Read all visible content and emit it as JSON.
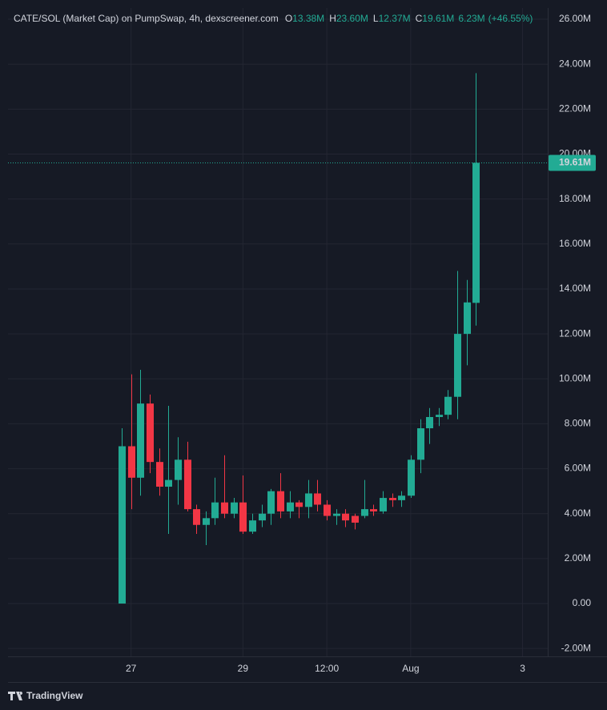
{
  "chart_data": {
    "type": "candlestick",
    "title": "CATE/SOL (Market Cap) on PumpSwap, 4h, dexscreener.com",
    "legend": [
      {
        "key": "O",
        "value": "13.38M"
      },
      {
        "key": "H",
        "value": "23.60M"
      },
      {
        "key": "L",
        "value": "12.37M"
      },
      {
        "key": "C",
        "value": "19.61M"
      }
    ],
    "change": "6.23M",
    "change_pct": "(+46.55%)",
    "last_price_label": "19.61M",
    "watermark": "TradingView",
    "up_color": "#22ab94",
    "down_color": "#f23645",
    "grid": true,
    "open": [
      0,
      7.0,
      5.6,
      8.9,
      6.3,
      5.2,
      5.5,
      6.4,
      4.2,
      3.5,
      3.8,
      4.5,
      4.0,
      4.5,
      3.2,
      3.7,
      4.0,
      5.0,
      4.1,
      4.5,
      4.3,
      4.9,
      4.4,
      3.9,
      4.0,
      3.9,
      3.9,
      4.2,
      4.1,
      4.7,
      4.6,
      4.8,
      6.4,
      7.8,
      8.3,
      8.4,
      9.2,
      12.0,
      13.38
    ],
    "high": [
      7.8,
      10.2,
      10.4,
      9.3,
      6.9,
      8.8,
      7.4,
      7.2,
      4.4,
      4.1,
      5.6,
      6.6,
      4.7,
      5.7,
      4.0,
      4.4,
      5.1,
      5.8,
      5.0,
      4.6,
      5.5,
      5.5,
      4.6,
      4.2,
      4.2,
      4.0,
      5.5,
      4.4,
      5.0,
      4.9,
      5.0,
      6.6,
      8.2,
      8.7,
      8.7,
      9.5,
      14.8,
      14.4,
      23.6
    ],
    "low": [
      0,
      4.2,
      4.8,
      5.8,
      4.8,
      3.1,
      4.4,
      4.1,
      3.1,
      2.6,
      3.5,
      3.8,
      3.8,
      3.1,
      3.1,
      3.4,
      3.5,
      3.8,
      3.8,
      3.8,
      3.8,
      4.1,
      3.7,
      3.5,
      3.4,
      3.3,
      3.8,
      3.9,
      4.0,
      4.3,
      4.3,
      4.7,
      5.8,
      7.1,
      7.9,
      8.2,
      8.2,
      10.6,
      12.37
    ],
    "close": [
      7.0,
      5.6,
      8.9,
      6.3,
      5.2,
      5.5,
      6.4,
      4.2,
      3.5,
      3.8,
      4.5,
      4.0,
      4.5,
      3.2,
      3.7,
      4.0,
      5.0,
      4.1,
      4.5,
      4.3,
      4.9,
      4.4,
      3.9,
      4.0,
      3.7,
      3.6,
      4.2,
      4.1,
      4.7,
      4.6,
      4.8,
      6.4,
      7.8,
      8.3,
      8.4,
      9.2,
      12.0,
      13.4,
      19.61
    ],
    "xlim": [
      -12.2,
      45.7
    ],
    "xticks": [
      {
        "value": 1,
        "label": "27"
      },
      {
        "value": 13,
        "label": "29"
      },
      {
        "value": 22,
        "label": "12:00"
      },
      {
        "value": 31,
        "label": "Aug"
      },
      {
        "value": 43,
        "label": "3"
      }
    ],
    "ylim": [
      -2.35,
      26.5
    ],
    "yticks": [
      {
        "value": -2,
        "label": "-2.00M"
      },
      {
        "value": 0,
        "label": "0.00"
      },
      {
        "value": 2,
        "label": "2.00M"
      },
      {
        "value": 4,
        "label": "4.00M"
      },
      {
        "value": 6,
        "label": "6.00M"
      },
      {
        "value": 8,
        "label": "8.00M"
      },
      {
        "value": 10,
        "label": "10.00M"
      },
      {
        "value": 12,
        "label": "12.00M"
      },
      {
        "value": 14,
        "label": "14.00M"
      },
      {
        "value": 16,
        "label": "16.00M"
      },
      {
        "value": 18,
        "label": "18.00M"
      },
      {
        "value": 20,
        "label": "20.00M"
      },
      {
        "value": 22,
        "label": "22.00M"
      },
      {
        "value": 24,
        "label": "24.00M"
      },
      {
        "value": 26,
        "label": "26.00M"
      }
    ]
  }
}
